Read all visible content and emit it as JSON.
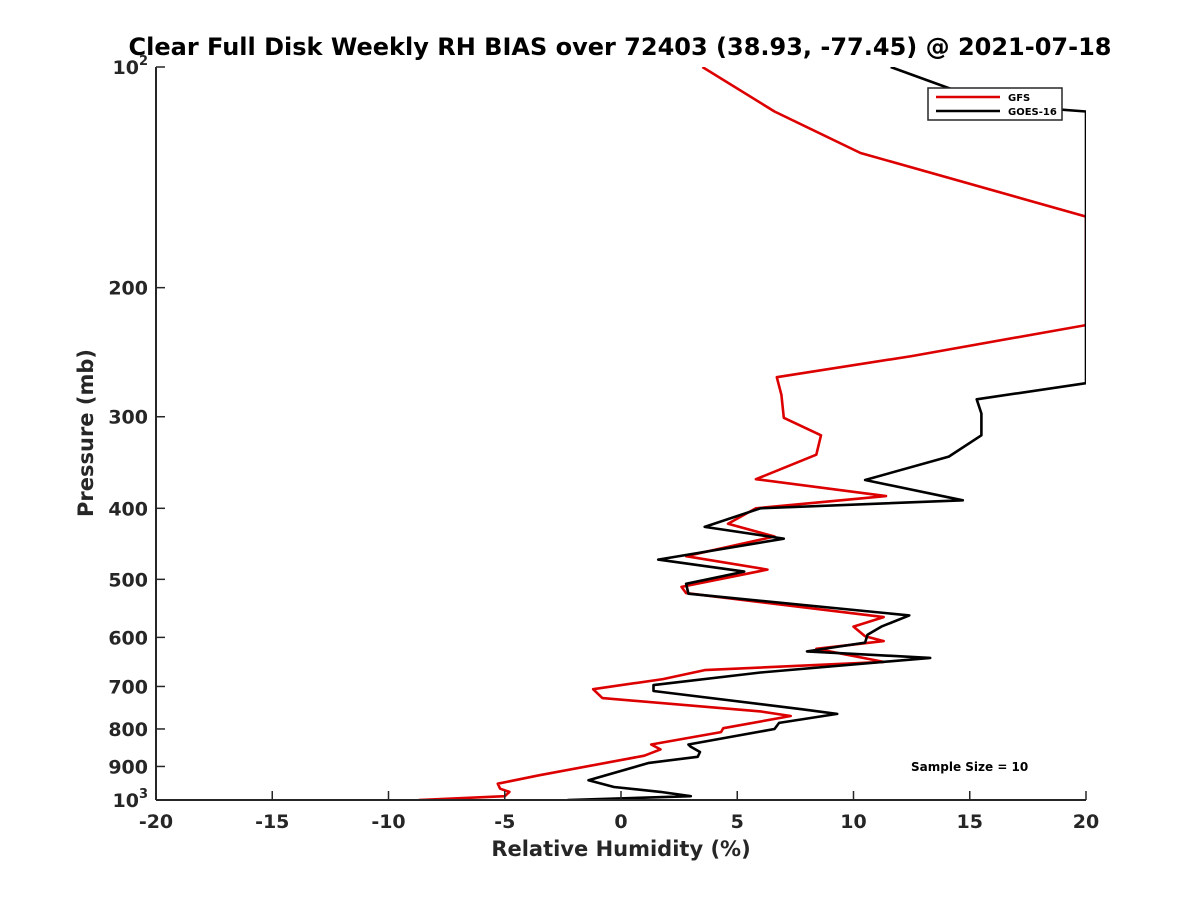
{
  "chart_data": {
    "type": "line",
    "title": "Clear Full Disk Weekly RH BIAS over 72403 (38.93, -77.45) @ 2021-07-18",
    "xlabel": "Relative Humidity (%)",
    "ylabel": "Pressure (mb)",
    "xlim": [
      -20,
      20
    ],
    "ylim": [
      100,
      1000
    ],
    "y_scale": "log",
    "y_reversed": true,
    "grid": false,
    "legend_position": "top-right",
    "annotation": "Sample Size = 10",
    "x_ticks": [
      "-20",
      "-15",
      "-10",
      "-5",
      "0",
      "5",
      "10",
      "15",
      "20"
    ],
    "y_ticks": [
      {
        "value": 100,
        "base": "10",
        "exp": "2"
      },
      {
        "value": 200,
        "base": "200",
        "exp": ""
      },
      {
        "value": 300,
        "base": "300",
        "exp": ""
      },
      {
        "value": 400,
        "base": "400",
        "exp": ""
      },
      {
        "value": 500,
        "base": "500",
        "exp": ""
      },
      {
        "value": 600,
        "base": "600",
        "exp": ""
      },
      {
        "value": 700,
        "base": "700",
        "exp": ""
      },
      {
        "value": 800,
        "base": "800",
        "exp": ""
      },
      {
        "value": 900,
        "base": "900",
        "exp": ""
      },
      {
        "value": 1000,
        "base": "10",
        "exp": "3"
      }
    ],
    "series": [
      {
        "name": "GFS",
        "color": "#dd0000",
        "points": [
          [
            3.5,
            100
          ],
          [
            6.6,
            115
          ],
          [
            10.3,
            131
          ],
          [
            20.0,
            160
          ],
          [
            20.0,
            225
          ],
          [
            12.5,
            248
          ],
          [
            6.7,
            265
          ],
          [
            6.9,
            280
          ],
          [
            7.0,
            301
          ],
          [
            8.6,
            318
          ],
          [
            8.4,
            338
          ],
          [
            5.8,
            365
          ],
          [
            11.4,
            385
          ],
          [
            5.8,
            400
          ],
          [
            4.6,
            420
          ],
          [
            6.6,
            437
          ],
          [
            2.8,
            465
          ],
          [
            6.3,
            485
          ],
          [
            2.6,
            512
          ],
          [
            2.8,
            522
          ],
          [
            11.3,
            563
          ],
          [
            10.0,
            580
          ],
          [
            10.5,
            598
          ],
          [
            11.3,
            607
          ],
          [
            8.4,
            622
          ],
          [
            11.3,
            648
          ],
          [
            3.6,
            665
          ],
          [
            1.8,
            684
          ],
          [
            -1.2,
            706
          ],
          [
            -0.8,
            726
          ],
          [
            6.0,
            757
          ],
          [
            7.3,
            768
          ],
          [
            4.4,
            798
          ],
          [
            4.3,
            808
          ],
          [
            1.3,
            840
          ],
          [
            1.7,
            853
          ],
          [
            1.0,
            870
          ],
          [
            -3.5,
            925
          ],
          [
            -5.3,
            950
          ],
          [
            -5.2,
            965
          ],
          [
            -4.8,
            975
          ],
          [
            -5.0,
            988
          ],
          [
            -8.7,
            1000
          ]
        ]
      },
      {
        "name": "GOES-16",
        "color": "#000000",
        "points": [
          [
            11.6,
            100
          ],
          [
            14.5,
            108
          ],
          [
            18.4,
            114
          ],
          [
            20.0,
            115
          ],
          [
            20.0,
            270
          ],
          [
            15.3,
            284
          ],
          [
            15.5,
            297
          ],
          [
            15.5,
            318
          ],
          [
            14.1,
            340
          ],
          [
            10.5,
            366
          ],
          [
            14.7,
            390
          ],
          [
            6.0,
            400
          ],
          [
            3.6,
            424
          ],
          [
            7.0,
            440
          ],
          [
            1.6,
            470
          ],
          [
            5.3,
            488
          ],
          [
            2.8,
            507
          ],
          [
            2.9,
            523
          ],
          [
            12.4,
            560
          ],
          [
            11.2,
            580
          ],
          [
            10.6,
            595
          ],
          [
            10.5,
            610
          ],
          [
            8.0,
            627
          ],
          [
            13.3,
            640
          ],
          [
            6.0,
            670
          ],
          [
            1.4,
            697
          ],
          [
            1.4,
            710
          ],
          [
            7.8,
            752
          ],
          [
            9.3,
            763
          ],
          [
            6.8,
            785
          ],
          [
            6.6,
            800
          ],
          [
            2.9,
            840
          ],
          [
            3.0,
            846
          ],
          [
            3.4,
            860
          ],
          [
            3.3,
            873
          ],
          [
            1.2,
            890
          ],
          [
            -1.4,
            940
          ],
          [
            -0.3,
            960
          ],
          [
            1.7,
            975
          ],
          [
            3.0,
            988
          ],
          [
            -2.3,
            1000
          ]
        ]
      }
    ]
  }
}
